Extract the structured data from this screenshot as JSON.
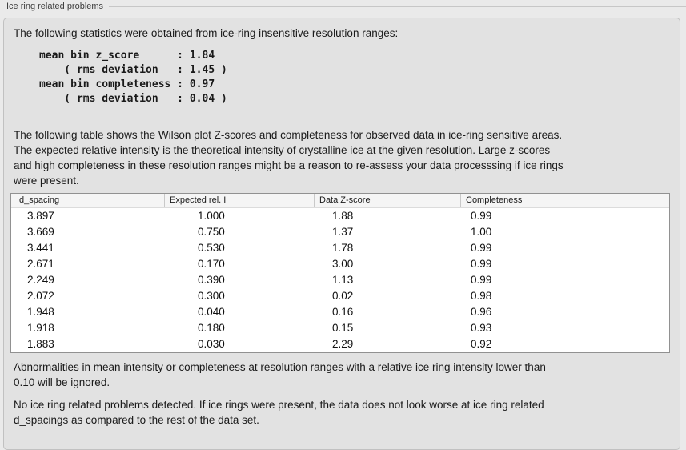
{
  "group": {
    "title": "Ice ring related problems"
  },
  "intro": {
    "text": "The following statistics were obtained from ice-ring insensitive resolution ranges:",
    "stats_text": "mean bin z_score      : 1.84\n    ( rms deviation   : 1.45 )\nmean bin completeness : 0.97\n    ( rms deviation   : 0.04 )",
    "stats": {
      "mean_bin_z_score": "1.84",
      "z_score_rms_deviation": "1.45",
      "mean_bin_completeness": "0.97",
      "completeness_rms_deviation": "0.04"
    }
  },
  "description": {
    "text": "The following table shows the Wilson plot Z-scores and completeness for observed data in ice-ring sensitive areas.\nThe expected relative intensity is the theoretical intensity of crystalline ice at the given resolution. Large z-scores\nand high completeness in these resolution ranges might be a reason to re-assess your data processsing if ice rings\nwere present."
  },
  "table": {
    "columns": [
      "d_spacing",
      "Expected rel. I",
      "Data Z-score",
      "Completeness"
    ],
    "rows": [
      [
        "3.897",
        "1.000",
        "1.88",
        "0.99"
      ],
      [
        "3.669",
        "0.750",
        "1.37",
        "1.00"
      ],
      [
        "3.441",
        "0.530",
        "1.78",
        "0.99"
      ],
      [
        "2.671",
        "0.170",
        "3.00",
        "0.99"
      ],
      [
        "2.249",
        "0.390",
        "1.13",
        "0.99"
      ],
      [
        "2.072",
        "0.300",
        "0.02",
        "0.98"
      ],
      [
        "1.948",
        "0.040",
        "0.16",
        "0.96"
      ],
      [
        "1.918",
        "0.180",
        "0.15",
        "0.93"
      ],
      [
        "1.883",
        "0.030",
        "2.29",
        "0.92"
      ]
    ]
  },
  "notes": {
    "ignore_note": "Abnormalities in mean intensity or completeness at resolution ranges with a relative ice ring intensity lower than\n0.10 will be ignored.",
    "conclusion": "No ice ring related problems detected. If ice rings were present, the data does not look worse at ice ring related\nd_spacings as compared to the rest of the data set."
  },
  "colors": {
    "background": "#eaeaea",
    "panel_bg": "#e2e2e2",
    "panel_border": "#c1c1c1",
    "table_border": "#919191",
    "table_header_bg": "#f5f5f5",
    "text": "#1a1a1a"
  }
}
